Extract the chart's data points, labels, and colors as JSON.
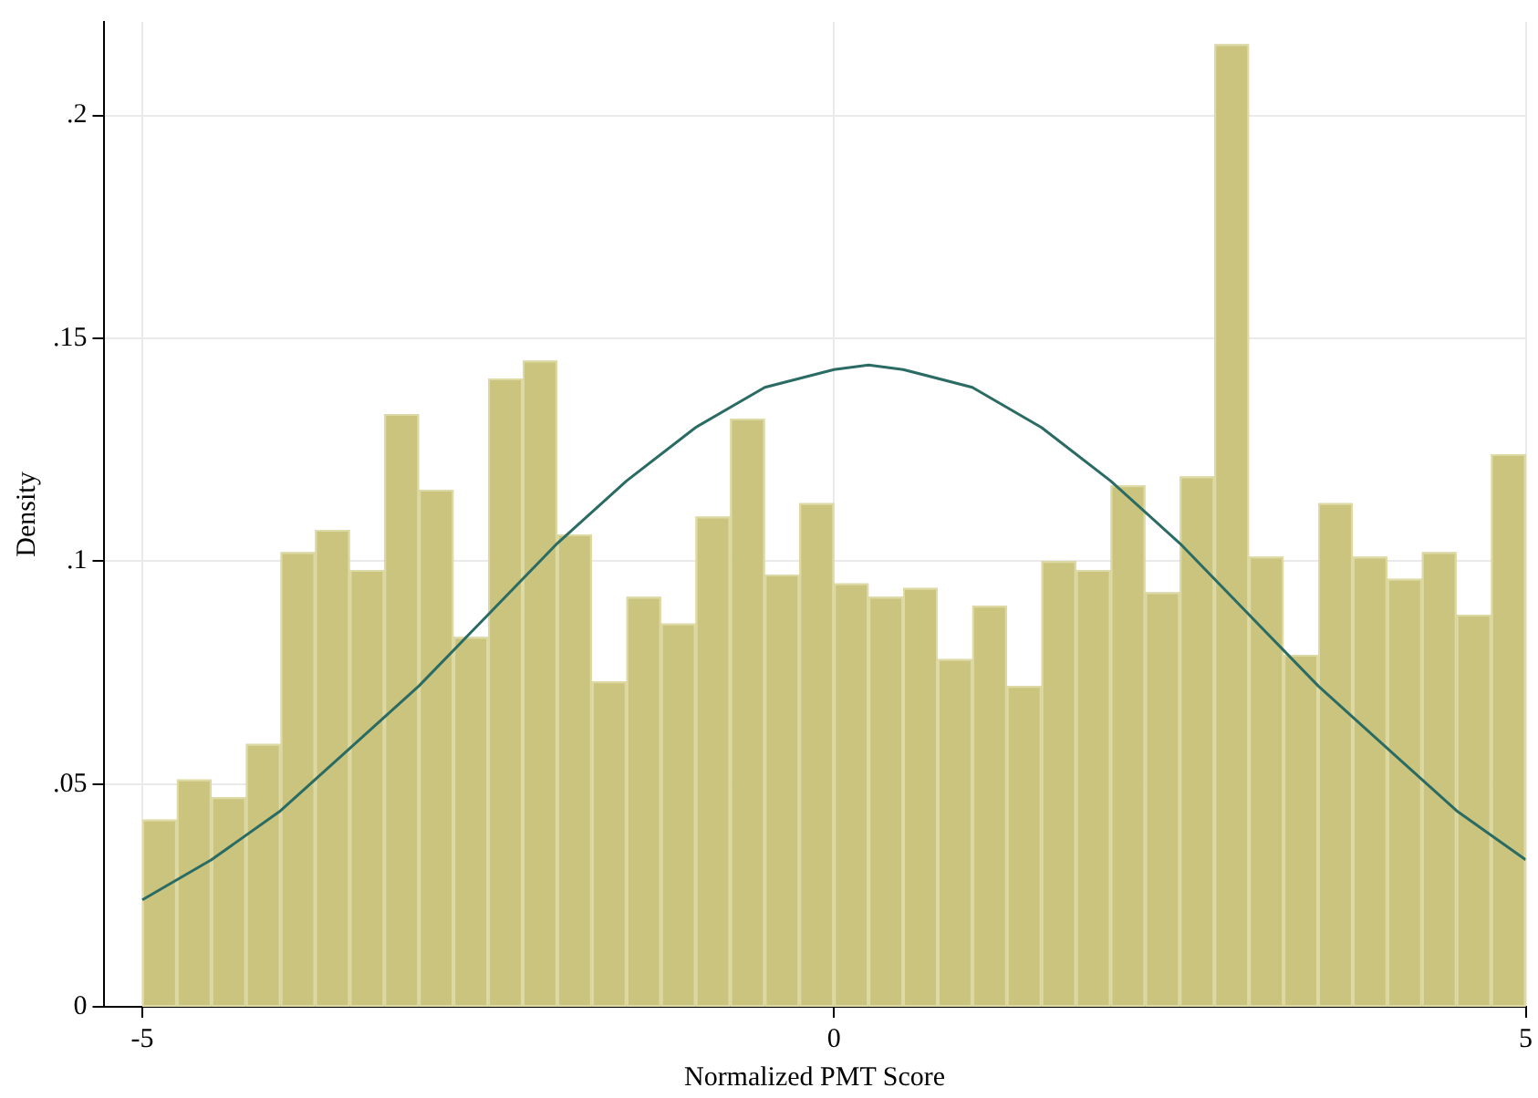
{
  "chart_data": {
    "type": "histogram",
    "xlabel": "Normalized PMT Score",
    "ylabel": "Density",
    "bins": [
      -5,
      -4.75,
      -4.5,
      -4.25,
      -4,
      -3.75,
      -3.5,
      -3.25,
      -3,
      -2.75,
      -2.5,
      -2.25,
      -2,
      -1.75,
      -1.5,
      -1.25,
      -1,
      -0.75,
      -0.5,
      -0.25,
      0,
      0.25,
      0.5,
      0.75,
      1,
      1.25,
      1.5,
      1.75,
      2,
      2.25,
      2.5,
      2.75,
      3,
      3.25,
      3.5,
      3.75,
      4,
      4.25,
      4.5,
      4.75,
      5
    ],
    "values": [
      0.042,
      0.051,
      0.047,
      0.059,
      0.102,
      0.107,
      0.098,
      0.133,
      0.116,
      0.083,
      0.141,
      0.145,
      0.106,
      0.073,
      0.092,
      0.086,
      0.11,
      0.132,
      0.097,
      0.113,
      0.095,
      0.092,
      0.094,
      0.078,
      0.09,
      0.072,
      0.1,
      0.098,
      0.117,
      0.093,
      0.119,
      0.216,
      0.101,
      0.079,
      0.113,
      0.101,
      0.096,
      0.102,
      0.088,
      0.124
    ],
    "color": "#cbc47f",
    "series": [
      {
        "type": "line",
        "color": "#2a6b63",
        "x": [
          -5,
          -4.5,
          -4,
          -3.5,
          -3,
          -2.5,
          -2,
          -1.5,
          -1,
          -0.5,
          0,
          0.25,
          0.5,
          1,
          1.5,
          2,
          2.5,
          3,
          3.5,
          4,
          4.5,
          5
        ],
        "values": [
          0.024,
          0.033,
          0.044,
          0.058,
          0.072,
          0.088,
          0.104,
          0.118,
          0.13,
          0.139,
          0.143,
          0.144,
          0.143,
          0.139,
          0.13,
          0.118,
          0.104,
          0.088,
          0.072,
          0.058,
          0.044,
          0.033
        ]
      }
    ],
    "xlim": [
      -5.28,
      5
    ],
    "xticks": [
      -5,
      0,
      5
    ],
    "ylim": [
      0,
      0.221
    ],
    "yticks": [
      {
        "value": 0,
        "label": "0"
      },
      {
        "value": 0.05,
        "label": ".05"
      },
      {
        "value": 0.1,
        "label": ".1"
      },
      {
        "value": 0.15,
        "label": ".15"
      },
      {
        "value": 0.2,
        "label": ".2"
      }
    ],
    "grid": true,
    "marker": "none",
    "line_style": "solid"
  }
}
